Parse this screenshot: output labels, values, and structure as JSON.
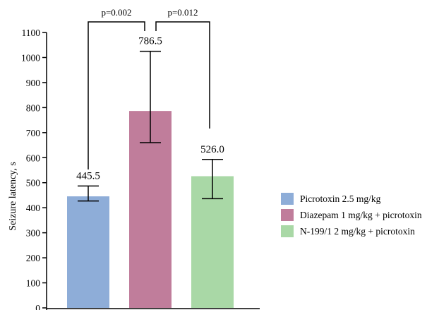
{
  "chart_data": {
    "type": "bar",
    "ylabel": "Seizure latency, s",
    "xlabel": "",
    "ylim": [
      0,
      1100
    ],
    "yticks": [
      0,
      100,
      200,
      300,
      400,
      500,
      600,
      700,
      800,
      900,
      1000,
      1100
    ],
    "grid": false,
    "legend_position": "right",
    "series": [
      {
        "name": "Picrotoxin 2.5 mg/kg",
        "value": 445.5,
        "value_label": "445.5",
        "err_low": 427,
        "err_high": 487,
        "color": "#8eadd8"
      },
      {
        "name": "Diazepam 1 mg/kg + picrotoxin",
        "value": 786.5,
        "value_label": "786.5",
        "err_low": 660,
        "err_high": 1025,
        "color": "#c07d9b"
      },
      {
        "name": "N-199/1 2 mg/kg + picrotoxin",
        "value": 526.0,
        "value_label": "526.0",
        "err_low": 436,
        "err_high": 593,
        "color": "#a9d8a6"
      }
    ],
    "comparisons": [
      {
        "from": 0,
        "to": 1,
        "label": "p=0.002"
      },
      {
        "from": 1,
        "to": 2,
        "label": "p=0.012"
      }
    ]
  }
}
